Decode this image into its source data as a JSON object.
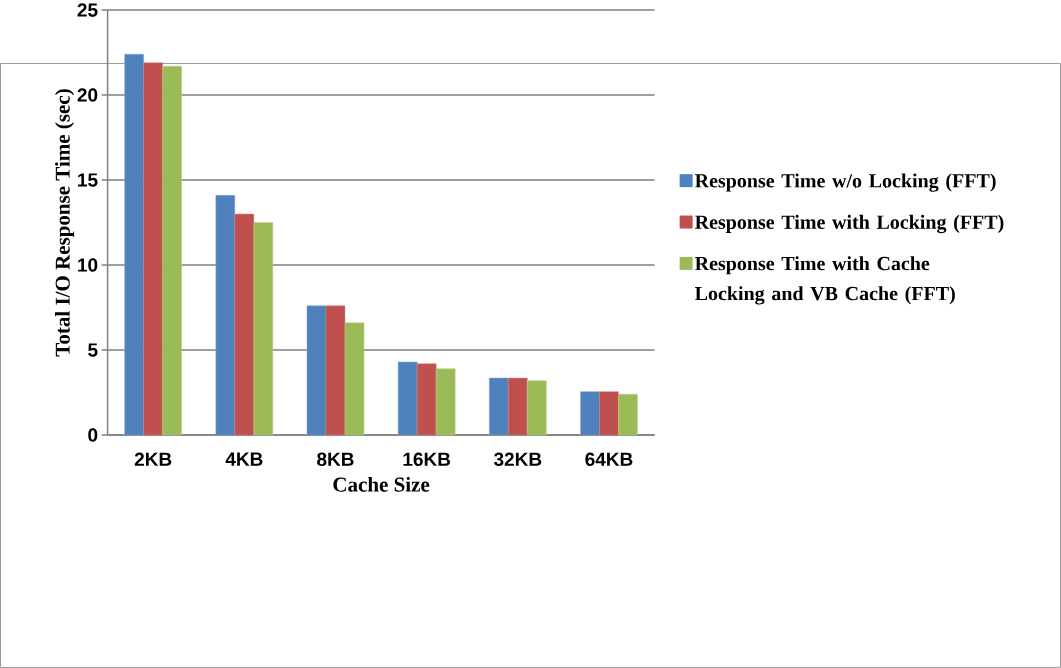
{
  "chart_data": {
    "type": "bar",
    "xlabel": "Cache Size",
    "ylabel": "Total  I/O Response  Time  (sec)",
    "categories": [
      "2KB",
      "4KB",
      "8KB",
      "16KB",
      "32KB",
      "64KB"
    ],
    "series": [
      {
        "name": "Response Time w/o Locking (FFT)",
        "color": "#4f81bd",
        "values": [
          22.4,
          14.1,
          7.6,
          4.3,
          3.35,
          2.55
        ]
      },
      {
        "name": "Response Time with Locking (FFT)",
        "color": "#c0504d",
        "values": [
          21.9,
          13.0,
          7.6,
          4.2,
          3.35,
          2.55
        ]
      },
      {
        "name": "Response Time with Cache Locking and VB Cache (FFT)",
        "color": "#9bbb59",
        "values": [
          21.7,
          12.5,
          6.6,
          3.9,
          3.2,
          2.4
        ]
      }
    ],
    "ylim": [
      0,
      25
    ],
    "yticks": [
      0,
      5,
      10,
      15,
      20,
      25
    ],
    "grid": "y",
    "legend": "right"
  }
}
